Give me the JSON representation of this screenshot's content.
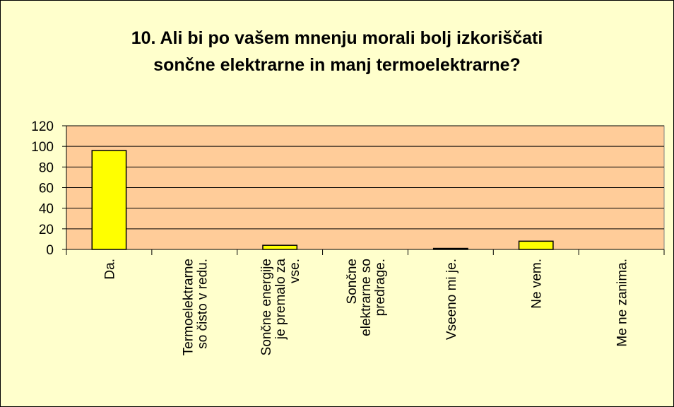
{
  "chart_data": {
    "type": "bar",
    "title": "10. Ali bi po vašem mnenju morali bolj izkoriščati sončne elektrarne in manj termoelektrarne?",
    "categories": [
      "Da.",
      "Termoelektrarne so čisto v redu.",
      "Sončne energije je premalo za vse.",
      "Sončne elektrarne so predrage.",
      "Vseeno mi je.",
      "Ne vem.",
      "Me ne zanima."
    ],
    "values": [
      96,
      0,
      4,
      0,
      1,
      8,
      0
    ],
    "color": "#ffff00",
    "ylim": [
      0,
      120
    ],
    "yticks": [
      0,
      20,
      40,
      60,
      80,
      100,
      120
    ],
    "grid": true
  }
}
